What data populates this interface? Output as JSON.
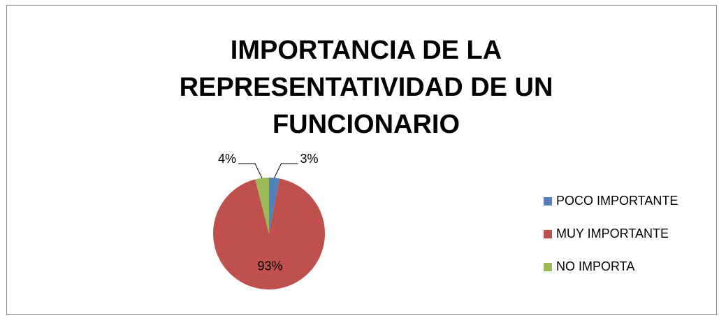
{
  "chart_data": {
    "type": "pie",
    "title": "IMPORTANCIA DE LA REPRESENTATIVIDAD DE UN FUNCIONARIO",
    "categories": [
      "POCO IMPORTANTE",
      "MUY IMPORTANTE",
      "NO IMPORTA"
    ],
    "values": [
      3,
      93,
      4
    ],
    "value_labels": [
      "3%",
      "93%",
      "4%"
    ],
    "colors": [
      "#4f81bd",
      "#c0504d",
      "#9bbb59"
    ],
    "legend": "right"
  }
}
